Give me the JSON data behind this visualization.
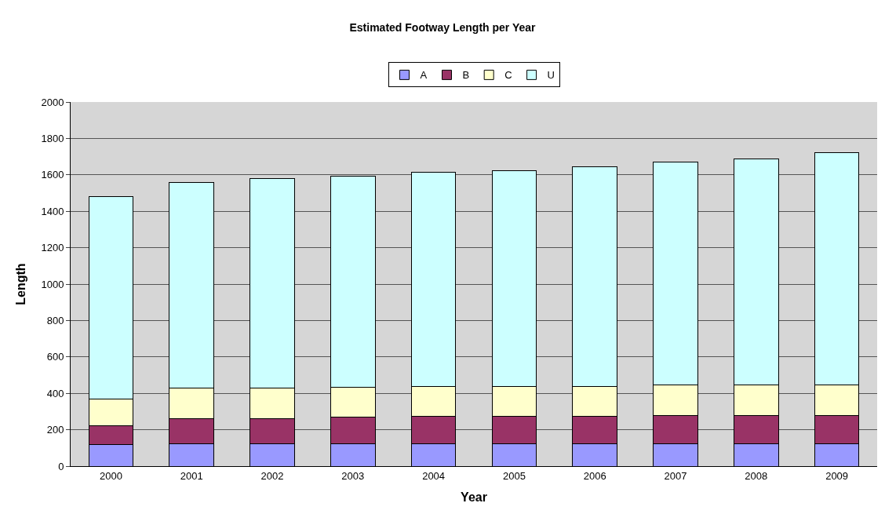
{
  "chart_data": {
    "type": "bar",
    "stacked": true,
    "title": "Estimated Footway Length per Year",
    "xlabel": "Year",
    "ylabel": "Length",
    "categories": [
      "2000",
      "2001",
      "2002",
      "2003",
      "2004",
      "2005",
      "2006",
      "2007",
      "2008",
      "2009"
    ],
    "series": [
      {
        "name": "A",
        "color": "#9999ff",
        "values": [
          119,
          122,
          122,
          122,
          123,
          123,
          123,
          123,
          123,
          123
        ]
      },
      {
        "name": "B",
        "color": "#993366",
        "values": [
          105,
          139,
          139,
          146,
          149,
          149,
          149,
          155,
          155,
          156
        ]
      },
      {
        "name": "C",
        "color": "#ffffcc",
        "values": [
          146,
          166,
          166,
          166,
          166,
          166,
          166,
          166,
          166,
          168
        ]
      },
      {
        "name": "U",
        "color": "#ccffff",
        "values": [
          1110,
          1131,
          1152,
          1159,
          1177,
          1185,
          1205,
          1225,
          1245,
          1273
        ]
      }
    ],
    "ylim": [
      0,
      2000
    ],
    "yticks": [
      0,
      200,
      400,
      600,
      800,
      1000,
      1200,
      1400,
      1600,
      1800,
      2000
    ],
    "grid": "y",
    "legend": "top"
  }
}
